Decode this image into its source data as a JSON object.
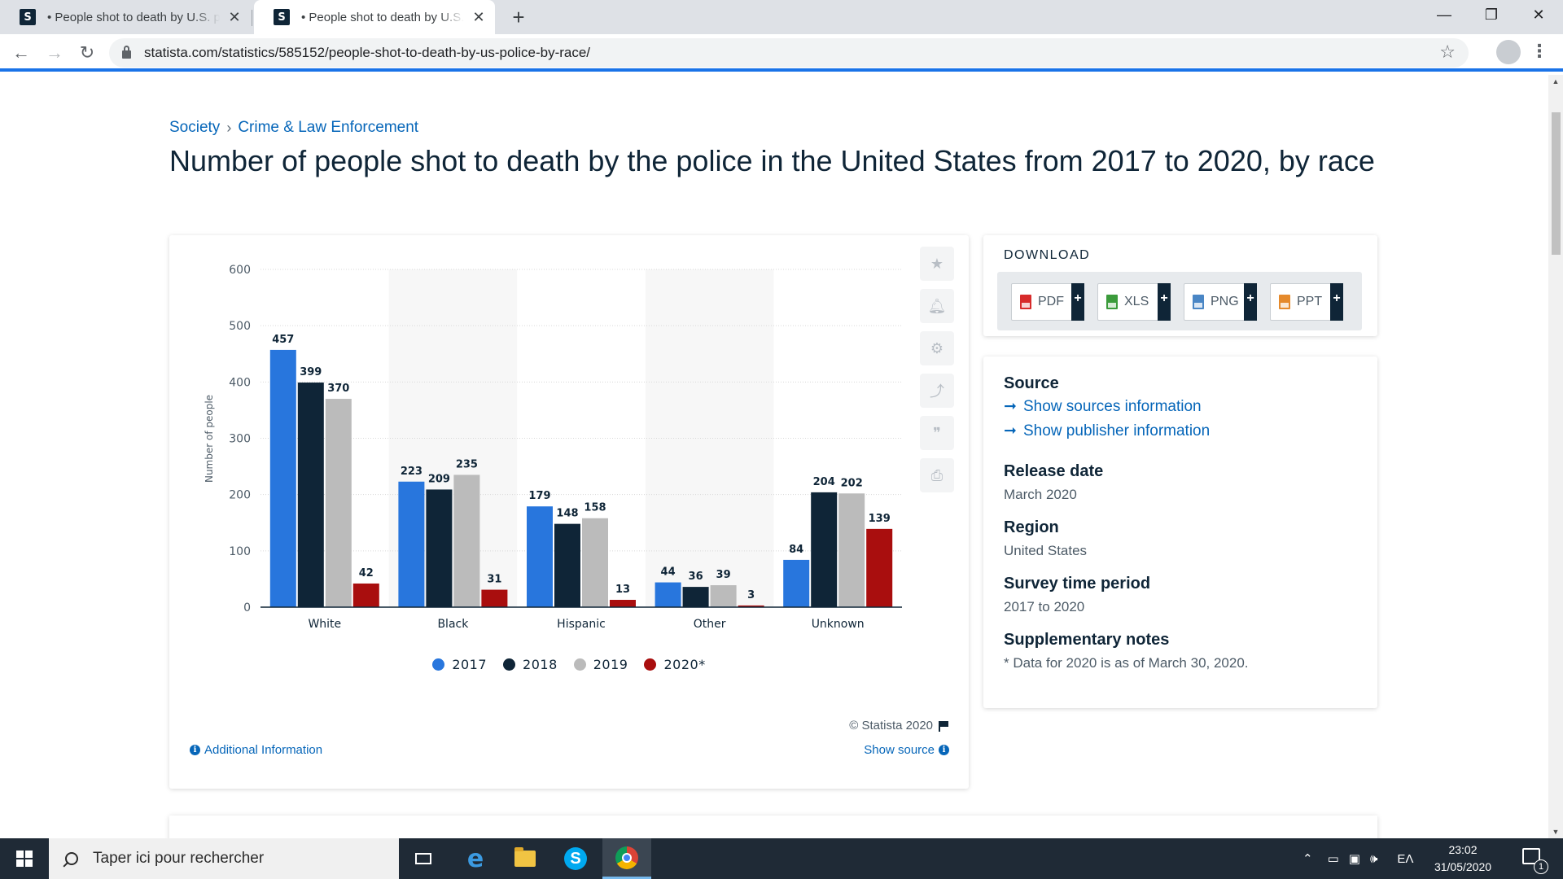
{
  "browser": {
    "tabs": [
      {
        "title": "• People shot to death by U.S. police by race"
      },
      {
        "title": "• People shot to death by U.S. police by race"
      }
    ],
    "favicon_letter": "S",
    "url": "statista.com/statistics/585152/people-shot-to-death-by-us-police-by-race/",
    "new_tab": "+",
    "close": "✕",
    "back": "←",
    "forward": "→",
    "reload": "↻",
    "minimize": "—",
    "maximize": "❐",
    "win_close": "✕"
  },
  "breadcrumb": {
    "items": [
      "Society",
      "Crime & Law Enforcement"
    ],
    "separator": "›"
  },
  "page_title": "Number of people shot to death by the police in the United States from 2017 to 2020, by race",
  "chart_data": {
    "type": "bar",
    "title": "",
    "xlabel": "",
    "ylabel": "Number of people",
    "ylim": [
      0,
      600
    ],
    "yticks": [
      0,
      100,
      200,
      300,
      400,
      500,
      600
    ],
    "categories": [
      "White",
      "Black",
      "Hispanic",
      "Other",
      "Unknown"
    ],
    "series": [
      {
        "name": "2017",
        "color": "#2876dd",
        "values": [
          457,
          223,
          179,
          44,
          84
        ]
      },
      {
        "name": "2018",
        "color": "#0f2537",
        "values": [
          399,
          209,
          148,
          36,
          204
        ]
      },
      {
        "name": "2019",
        "color": "#bbbbbb",
        "values": [
          370,
          235,
          158,
          39,
          202
        ]
      },
      {
        "name": "2020*",
        "color": "#a90e0e",
        "values": [
          42,
          31,
          13,
          3,
          139
        ]
      }
    ],
    "legend_position": "bottom"
  },
  "chart_card": {
    "copyright": "© Statista 2020",
    "additional_info": "Additional Information",
    "show_source": "Show source",
    "tools": [
      "star-icon",
      "bell-icon",
      "gear-icon",
      "share-icon",
      "quote-icon",
      "print-icon"
    ]
  },
  "download": {
    "title": "DOWNLOAD",
    "buttons": [
      {
        "label": "PDF",
        "color": "#d72b2b"
      },
      {
        "label": "XLS",
        "color": "#3b9b3b"
      },
      {
        "label": "PNG",
        "color": "#4a86c5"
      },
      {
        "label": "PPT",
        "color": "#e58a2c"
      }
    ],
    "plus": "+"
  },
  "info": {
    "source_heading": "Source",
    "show_sources": "Show sources information",
    "show_publisher": "Show publisher information",
    "release_heading": "Release date",
    "release_value": "March 2020",
    "region_heading": "Region",
    "region_value": "United States",
    "survey_heading": "Survey time period",
    "survey_value": "2017 to 2020",
    "notes_heading": "Supplementary notes",
    "notes_value": "* Data for 2020 is as of March 30, 2020."
  },
  "taskbar": {
    "search_placeholder": "Taper ici pour rechercher",
    "time": "23:02",
    "date": "31/05/2020",
    "language": "EΛ",
    "notification_count": "1"
  }
}
